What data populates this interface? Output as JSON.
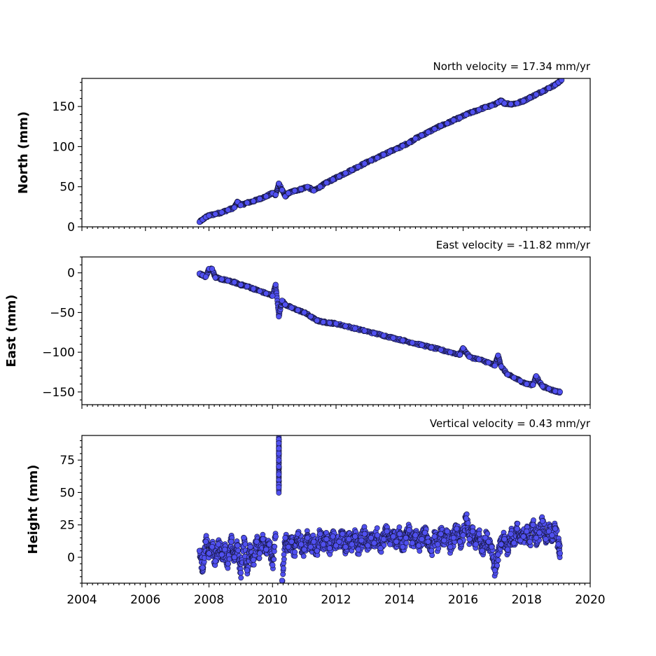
{
  "chart_data": [
    {
      "type": "scatter",
      "title": "North velocity = 17.34 mm/yr",
      "xlabel": "",
      "ylabel": "North (mm)",
      "xlim": [
        2004,
        2020
      ],
      "ylim": [
        0,
        185
      ],
      "yticks": [
        0,
        50,
        100,
        150
      ],
      "ytick_labels": [
        "0",
        "50",
        "100",
        "150"
      ],
      "xticks": [
        2004,
        2006,
        2008,
        2010,
        2012,
        2014,
        2016,
        2018,
        2020
      ],
      "xtick_labels": [
        "",
        "",
        "",
        "",
        "",
        "",
        "",
        "",
        ""
      ],
      "color": "#5050f0",
      "series": [
        {
          "x": [
            2007.7,
            2007.8,
            2007.9,
            2008.0,
            2008.2,
            2008.4,
            2008.6,
            2008.8,
            2008.9,
            2009.0,
            2009.2,
            2009.4,
            2009.6,
            2009.8,
            2010.0,
            2010.1,
            2010.2,
            2010.3,
            2010.4,
            2010.5,
            2010.7,
            2010.9,
            2011.1,
            2011.3,
            2011.5,
            2011.7,
            2011.9,
            2012.1,
            2012.3,
            2012.5,
            2012.7,
            2012.9,
            2013.1,
            2013.3,
            2013.5,
            2013.7,
            2013.9,
            2014.1,
            2014.3,
            2014.5,
            2014.7,
            2014.9,
            2015.1,
            2015.3,
            2015.5,
            2015.7,
            2015.9,
            2016.1,
            2016.3,
            2016.5,
            2016.7,
            2016.9,
            2017.1,
            2017.2,
            2017.3,
            2017.5,
            2017.7,
            2017.9,
            2018.1,
            2018.3,
            2018.5,
            2018.7,
            2018.9,
            2019.0,
            2019.1
          ],
          "y": [
            6,
            9,
            12,
            14,
            16,
            18,
            21,
            24,
            31,
            27,
            30,
            32,
            35,
            38,
            42,
            40,
            54,
            46,
            38,
            42,
            45,
            47,
            50,
            45,
            50,
            55,
            59,
            63,
            67,
            71,
            75,
            79,
            83,
            86,
            90,
            94,
            97,
            101,
            105,
            110,
            114,
            118,
            122,
            126,
            129,
            133,
            136,
            140,
            143,
            146,
            149,
            151,
            155,
            157,
            154,
            153,
            154,
            157,
            161,
            165,
            169,
            173,
            177,
            180,
            183
          ]
        }
      ]
    },
    {
      "type": "scatter",
      "title": "East velocity = -11.82 mm/yr",
      "xlabel": "",
      "ylabel": "East (mm)",
      "xlim": [
        2004,
        2020
      ],
      "ylim": [
        -166,
        20
      ],
      "yticks": [
        0,
        -50,
        -100,
        -150
      ],
      "ytick_labels": [
        "0",
        "−50",
        "−100",
        "−150"
      ],
      "xticks": [
        2004,
        2006,
        2008,
        2010,
        2012,
        2014,
        2016,
        2018,
        2020
      ],
      "xtick_labels": [
        "",
        "",
        "",
        "",
        "",
        "",
        "",
        "",
        ""
      ],
      "color": "#5050f0",
      "series": [
        {
          "x": [
            2007.7,
            2007.8,
            2007.9,
            2008.0,
            2008.1,
            2008.2,
            2008.4,
            2008.6,
            2008.8,
            2009.0,
            2009.2,
            2009.4,
            2009.6,
            2009.8,
            2010.0,
            2010.1,
            2010.2,
            2010.3,
            2010.4,
            2010.6,
            2010.8,
            2011.0,
            2011.2,
            2011.4,
            2011.6,
            2011.8,
            2012.0,
            2012.3,
            2012.6,
            2012.9,
            2013.2,
            2013.5,
            2013.8,
            2014.1,
            2014.4,
            2014.7,
            2015.0,
            2015.3,
            2015.6,
            2015.9,
            2016.0,
            2016.2,
            2016.5,
            2016.8,
            2017.0,
            2017.1,
            2017.2,
            2017.4,
            2017.6,
            2017.8,
            2018.0,
            2018.2,
            2018.3,
            2018.5,
            2018.7,
            2018.9,
            2019.05
          ],
          "y": [
            -1,
            -3,
            -5,
            5,
            5,
            -6,
            -8,
            -10,
            -12,
            -15,
            -17,
            -20,
            -23,
            -26,
            -29,
            -15,
            -55,
            -35,
            -40,
            -44,
            -47,
            -50,
            -55,
            -60,
            -62,
            -63,
            -64,
            -67,
            -70,
            -73,
            -76,
            -79,
            -82,
            -85,
            -88,
            -91,
            -94,
            -97,
            -100,
            -103,
            -95,
            -106,
            -109,
            -113,
            -117,
            -104,
            -118,
            -128,
            -132,
            -136,
            -140,
            -141,
            -130,
            -143,
            -146,
            -149,
            -150
          ]
        }
      ]
    },
    {
      "type": "scatter",
      "title": "Vertical velocity = 0.43 mm/yr",
      "xlabel": "",
      "ylabel": "Height (mm)",
      "xlim": [
        2004,
        2020
      ],
      "ylim": [
        -20,
        94
      ],
      "yticks": [
        0,
        25,
        50,
        75
      ],
      "ytick_labels": [
        "0",
        "25",
        "50",
        "75"
      ],
      "xticks": [
        2004,
        2006,
        2008,
        2010,
        2012,
        2014,
        2016,
        2018,
        2020
      ],
      "xtick_labels": [
        "2004",
        "2006",
        "2008",
        "2010",
        "2012",
        "2014",
        "2016",
        "2018",
        "2020"
      ],
      "color": "#5050f0",
      "series": [
        {
          "x": [
            2007.7,
            2007.8,
            2007.9,
            2008.0,
            2008.1,
            2008.2,
            2008.3,
            2008.4,
            2008.5,
            2008.6,
            2008.7,
            2008.8,
            2008.9,
            2009.0,
            2009.1,
            2009.2,
            2009.3,
            2009.4,
            2009.5,
            2009.6,
            2009.7,
            2009.8,
            2009.9,
            2010.0,
            2010.1,
            2010.2,
            2010.2,
            2010.2,
            2010.2,
            2010.2,
            2010.2,
            2010.2,
            2010.2,
            2010.2,
            2010.3,
            2010.4,
            2010.5,
            2010.6,
            2010.7,
            2010.8,
            2010.9,
            2011.0,
            2011.1,
            2011.2,
            2011.3,
            2011.4,
            2011.5,
            2011.6,
            2011.7,
            2011.8,
            2011.9,
            2012.0,
            2012.1,
            2012.2,
            2012.3,
            2012.4,
            2012.5,
            2012.6,
            2012.7,
            2012.8,
            2012.9,
            2013.0,
            2013.1,
            2013.2,
            2013.3,
            2013.4,
            2013.5,
            2013.6,
            2013.7,
            2013.8,
            2013.9,
            2014.0,
            2014.1,
            2014.2,
            2014.3,
            2014.4,
            2014.5,
            2014.6,
            2014.7,
            2014.8,
            2014.9,
            2015.0,
            2015.1,
            2015.2,
            2015.3,
            2015.4,
            2015.5,
            2015.6,
            2015.7,
            2015.8,
            2015.9,
            2016.0,
            2016.1,
            2016.2,
            2016.3,
            2016.4,
            2016.5,
            2016.6,
            2016.7,
            2016.8,
            2016.9,
            2017.0,
            2017.1,
            2017.2,
            2017.3,
            2017.4,
            2017.5,
            2017.6,
            2017.7,
            2017.8,
            2017.9,
            2018.0,
            2018.1,
            2018.2,
            2018.3,
            2018.4,
            2018.5,
            2018.6,
            2018.7,
            2018.8,
            2018.9,
            2019.0,
            2019.05
          ],
          "y": [
            5,
            -8,
            12,
            3,
            8,
            -3,
            10,
            2,
            6,
            -5,
            12,
            0,
            9,
            -12,
            15,
            -10,
            8,
            -2,
            12,
            3,
            14,
            6,
            10,
            -6,
            16,
            91,
            88,
            84,
            80,
            75,
            70,
            64,
            56,
            54,
            -18,
            15,
            8,
            12,
            4,
            18,
            10,
            6,
            15,
            8,
            12,
            5,
            18,
            10,
            14,
            7,
            16,
            9,
            12,
            18,
            8,
            14,
            10,
            16,
            6,
            13,
            18,
            9,
            15,
            11,
            17,
            7,
            14,
            20,
            10,
            16,
            12,
            18,
            8,
            15,
            21,
            11,
            17,
            9,
            14,
            19,
            12,
            5,
            16,
            10,
            18,
            13,
            20,
            8,
            15,
            22,
            12,
            17,
            30,
            14,
            20,
            10,
            18,
            5,
            15,
            12,
            8,
            -10,
            2,
            10,
            14,
            6,
            18,
            11,
            22,
            13,
            16,
            20,
            12,
            25,
            15,
            19,
            28,
            14,
            20,
            17,
            22,
            10,
            3
          ]
        }
      ]
    }
  ]
}
